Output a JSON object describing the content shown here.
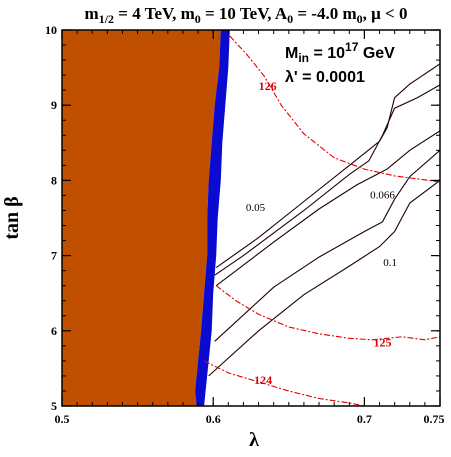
{
  "chart_data": {
    "type": "contour",
    "title": {
      "m_half_prefix": "m",
      "m_half_sub": "1/2",
      "m_half_value": " = 4 TeV, m",
      "m0_sub": "0",
      "m0_value": " = 10 TeV, A",
      "a0_sub": "0",
      "a0_value": " = -4.0 m",
      "a0_m0_sub": "0",
      "mu_part": ", μ < 0"
    },
    "xlabel": "λ",
    "ylabel": "tan β",
    "xlim": [
      0.5,
      0.75
    ],
    "ylim": [
      5,
      10
    ],
    "xticks": [
      {
        "value": 0.5,
        "label": "0.5"
      },
      {
        "value": 0.6,
        "label": "0.6"
      },
      {
        "value": 0.7,
        "label": "0.7"
      },
      {
        "value": 0.75,
        "label": "0.75"
      }
    ],
    "yticks": [
      {
        "value": 5,
        "label": "5"
      },
      {
        "value": 6,
        "label": "6"
      },
      {
        "value": 7,
        "label": "7"
      },
      {
        "value": 8,
        "label": "8"
      },
      {
        "value": 9,
        "label": "9"
      },
      {
        "value": 10,
        "label": "10"
      }
    ],
    "annotations": {
      "m_in_prefix": "M",
      "m_in_sub": "in",
      "m_in_mid": " = 10",
      "m_in_sup": "17",
      "m_in_unit": " GeV",
      "lambda_prime": "λ' = 0.0001"
    },
    "colors": {
      "excluded_region": "#c05000",
      "strip": "#0a0ad0",
      "higgs_contours": "#e00000",
      "other_contours": "#200000"
    },
    "regions": [
      {
        "name": "excluded-region",
        "color": "#c05000",
        "points": [
          [
            0.5,
            5
          ],
          [
            0.5,
            10
          ],
          [
            0.605,
            10
          ],
          [
            0.604,
            9.5
          ],
          [
            0.601,
            9.0
          ],
          [
            0.599,
            8.5
          ],
          [
            0.597,
            8.0
          ],
          [
            0.596,
            7.5
          ],
          [
            0.596,
            7.0
          ],
          [
            0.594,
            6.5
          ],
          [
            0.592,
            6.0
          ],
          [
            0.59,
            5.6
          ],
          [
            0.588,
            5.2
          ],
          [
            0.589,
            5
          ]
        ]
      },
      {
        "name": "blue-strip",
        "color": "#0a0ad0",
        "points": [
          [
            0.605,
            10
          ],
          [
            0.611,
            10
          ],
          [
            0.61,
            9.5
          ],
          [
            0.608,
            9.0
          ],
          [
            0.606,
            8.5
          ],
          [
            0.605,
            8.0
          ],
          [
            0.603,
            7.5
          ],
          [
            0.602,
            7.0
          ],
          [
            0.6,
            6.5
          ],
          [
            0.599,
            6.0
          ],
          [
            0.597,
            5.6
          ],
          [
            0.595,
            5.2
          ],
          [
            0.594,
            5
          ],
          [
            0.589,
            5
          ],
          [
            0.588,
            5.2
          ],
          [
            0.59,
            5.6
          ],
          [
            0.592,
            6.0
          ],
          [
            0.594,
            6.5
          ],
          [
            0.596,
            7.0
          ],
          [
            0.596,
            7.5
          ],
          [
            0.597,
            8.0
          ],
          [
            0.599,
            8.5
          ],
          [
            0.601,
            9.0
          ],
          [
            0.604,
            9.5
          ]
        ]
      }
    ],
    "black_contours": [
      {
        "label": "0.05",
        "label_at": [
          0.628,
          7.59
        ],
        "points": [
          [
            0.602,
            6.84
          ],
          [
            0.63,
            7.24
          ],
          [
            0.66,
            7.72
          ],
          [
            0.69,
            8.2
          ],
          [
            0.71,
            8.52
          ],
          [
            0.715,
            8.7
          ],
          [
            0.72,
            9.1
          ],
          [
            0.73,
            9.28
          ],
          [
            0.75,
            9.55
          ]
        ]
      },
      {
        "label": "0.066",
        "label_at": [
          0.712,
          7.76
        ],
        "points": [
          [
            0.602,
            6.6
          ],
          [
            0.64,
            7.18
          ],
          [
            0.67,
            7.62
          ],
          [
            0.695,
            7.94
          ],
          [
            0.715,
            8.15
          ],
          [
            0.73,
            8.4
          ],
          [
            0.75,
            8.66
          ]
        ]
      },
      {
        "label": "0.1",
        "label_at": [
          0.717,
          6.86
        ],
        "points": [
          [
            0.601,
            5.86
          ],
          [
            0.64,
            6.58
          ],
          [
            0.67,
            6.98
          ],
          [
            0.7,
            7.32
          ],
          [
            0.712,
            7.45
          ],
          [
            0.72,
            7.75
          ],
          [
            0.73,
            8.05
          ],
          [
            0.75,
            8.4
          ]
        ]
      },
      {
        "label": "",
        "label_at": null,
        "points": [
          [
            0.601,
            6.74
          ],
          [
            0.62,
            7.0
          ],
          [
            0.66,
            7.6
          ],
          [
            0.69,
            8.08
          ],
          [
            0.703,
            8.26
          ],
          [
            0.712,
            8.6
          ],
          [
            0.72,
            8.96
          ],
          [
            0.735,
            9.1
          ],
          [
            0.75,
            9.27
          ]
        ]
      },
      {
        "label": "",
        "label_at": null,
        "points": [
          [
            0.597,
            5.4
          ],
          [
            0.63,
            6.0
          ],
          [
            0.66,
            6.48
          ],
          [
            0.69,
            6.86
          ],
          [
            0.71,
            7.12
          ],
          [
            0.72,
            7.32
          ],
          [
            0.73,
            7.7
          ],
          [
            0.75,
            8.0
          ]
        ]
      }
    ],
    "higgs_contours": [
      {
        "label": "126",
        "label_at": [
          0.636,
          9.2
        ],
        "points": [
          [
            0.611,
            9.92
          ],
          [
            0.622,
            9.68
          ],
          [
            0.634,
            9.38
          ],
          [
            0.645,
            9.0
          ],
          [
            0.66,
            8.62
          ],
          [
            0.68,
            8.3
          ],
          [
            0.7,
            8.15
          ],
          [
            0.72,
            8.06
          ],
          [
            0.75,
            7.98
          ]
        ]
      },
      {
        "label": "125",
        "label_at": [
          0.712,
          5.79
        ],
        "points": [
          [
            0.602,
            6.6
          ],
          [
            0.615,
            6.4
          ],
          [
            0.63,
            6.22
          ],
          [
            0.65,
            6.05
          ],
          [
            0.67,
            5.96
          ],
          [
            0.69,
            5.9
          ],
          [
            0.705,
            5.88
          ],
          [
            0.725,
            5.92
          ],
          [
            0.74,
            5.88
          ],
          [
            0.75,
            5.92
          ]
        ]
      },
      {
        "label": "124",
        "label_at": [
          0.633,
          5.29
        ],
        "points": [
          [
            0.594,
            5.6
          ],
          [
            0.61,
            5.44
          ],
          [
            0.63,
            5.32
          ],
          [
            0.65,
            5.2
          ],
          [
            0.67,
            5.1
          ],
          [
            0.69,
            5.04
          ],
          [
            0.7,
            5.0
          ]
        ]
      }
    ]
  }
}
